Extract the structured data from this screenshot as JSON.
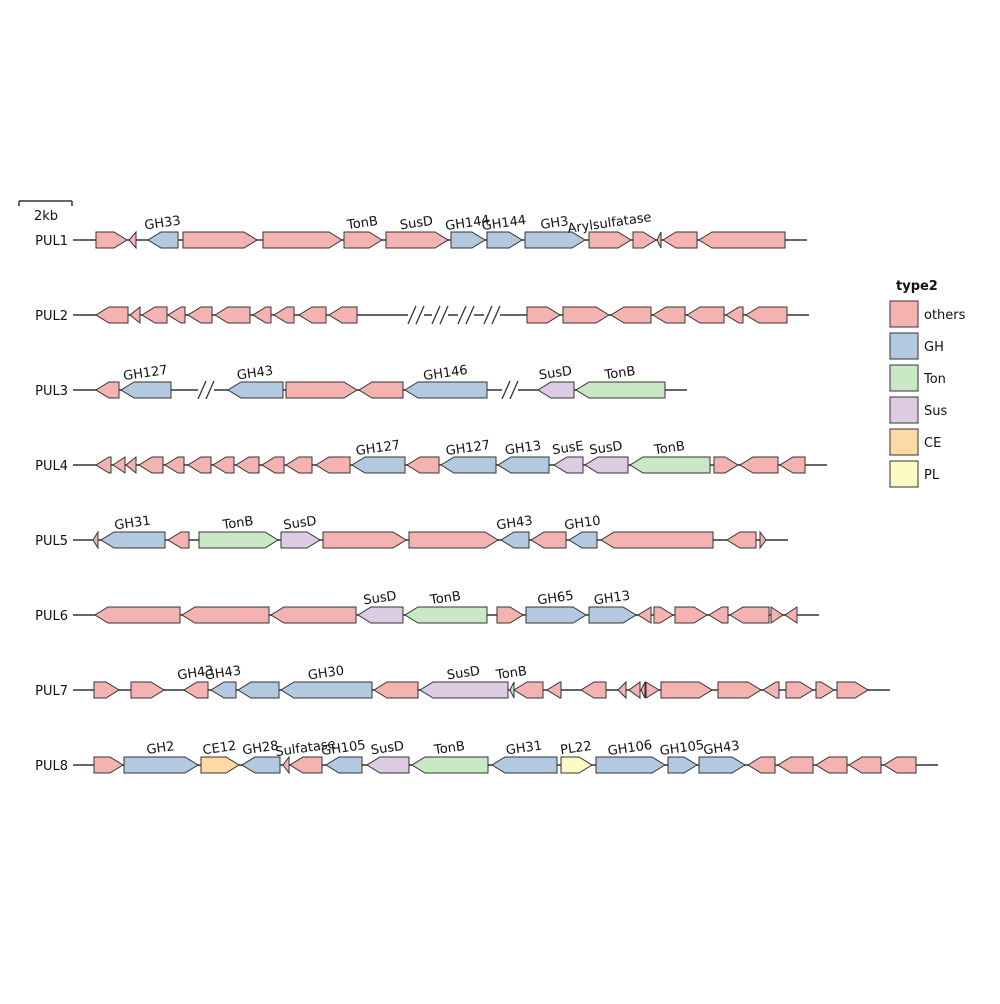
{
  "scale_bar": {
    "label": "2kb"
  },
  "legend": {
    "title": "type2",
    "items": [
      {
        "label": "others",
        "key": "others"
      },
      {
        "label": "GH",
        "key": "GH"
      },
      {
        "label": "Ton",
        "key": "Ton"
      },
      {
        "label": "Sus",
        "key": "Sus"
      },
      {
        "label": "CE",
        "key": "CE"
      },
      {
        "label": "PL",
        "key": "PL"
      }
    ]
  },
  "colors": {
    "others": "#f4b3b0",
    "GH": "#b3c9e0",
    "Ton": "#cbe8c6",
    "Sus": "#dccbe3",
    "CE": "#fdd9a6",
    "PL": "#fdfbc4",
    "stroke": "#333333"
  },
  "loci": [
    {
      "name": "PUL1",
      "breaks": [],
      "genes": [
        {
          "s": 96,
          "e": 127,
          "d": 1,
          "t": "others"
        },
        {
          "s": 129,
          "e": 136,
          "d": -1,
          "t": "others"
        },
        {
          "s": 148,
          "e": 178,
          "d": -1,
          "t": "GH",
          "l": "GH33"
        },
        {
          "s": 183,
          "e": 257,
          "d": 1,
          "t": "others"
        },
        {
          "s": 263,
          "e": 342,
          "d": 1,
          "t": "others"
        },
        {
          "s": 344,
          "e": 382,
          "d": 1,
          "t": "others",
          "l": "TonB"
        },
        {
          "s": 386,
          "e": 448,
          "d": 1,
          "t": "others",
          "l": "SusD"
        },
        {
          "s": 451,
          "e": 485,
          "d": 1,
          "t": "GH",
          "l": "GH144"
        },
        {
          "s": 487,
          "e": 522,
          "d": 1,
          "t": "GH",
          "l": "GH144"
        },
        {
          "s": 525,
          "e": 585,
          "d": 1,
          "t": "GH",
          "l": "GH3"
        },
        {
          "s": 589,
          "e": 631,
          "d": 1,
          "t": "others",
          "l": "Arylsulfatase"
        },
        {
          "s": 633,
          "e": 656,
          "d": 1,
          "t": "others"
        },
        {
          "s": 657,
          "e": 661,
          "d": -1,
          "t": "others"
        },
        {
          "s": 663,
          "e": 697,
          "d": -1,
          "t": "others"
        },
        {
          "s": 699,
          "e": 785,
          "d": -1,
          "t": "others"
        }
      ]
    },
    {
      "name": "PUL2",
      "breaks": [
        416,
        440,
        466,
        492
      ],
      "genes": [
        {
          "s": 96,
          "e": 128,
          "d": -1,
          "t": "others"
        },
        {
          "s": 130,
          "e": 140,
          "d": -1,
          "t": "others"
        },
        {
          "s": 142,
          "e": 167,
          "d": -1,
          "t": "others"
        },
        {
          "s": 168,
          "e": 185,
          "d": -1,
          "t": "others"
        },
        {
          "s": 188,
          "e": 212,
          "d": -1,
          "t": "others"
        },
        {
          "s": 215,
          "e": 250,
          "d": -1,
          "t": "others"
        },
        {
          "s": 253,
          "e": 271,
          "d": -1,
          "t": "others"
        },
        {
          "s": 274,
          "e": 294,
          "d": -1,
          "t": "others"
        },
        {
          "s": 299,
          "e": 326,
          "d": -1,
          "t": "others"
        },
        {
          "s": 329,
          "e": 357,
          "d": -1,
          "t": "others"
        },
        {
          "s": 527,
          "e": 560,
          "d": 1,
          "t": "others"
        },
        {
          "s": 563,
          "e": 609,
          "d": 1,
          "t": "others"
        },
        {
          "s": 611,
          "e": 651,
          "d": -1,
          "t": "others"
        },
        {
          "s": 653,
          "e": 685,
          "d": -1,
          "t": "others"
        },
        {
          "s": 687,
          "e": 724,
          "d": -1,
          "t": "others"
        },
        {
          "s": 726,
          "e": 743,
          "d": -1,
          "t": "others"
        },
        {
          "s": 746,
          "e": 787,
          "d": -1,
          "t": "others"
        }
      ]
    },
    {
      "name": "PUL3",
      "breaks": [
        206,
        510
      ],
      "genes": [
        {
          "s": 96,
          "e": 119,
          "d": -1,
          "t": "others"
        },
        {
          "s": 121,
          "e": 171,
          "d": -1,
          "t": "GH",
          "l": "GH127"
        },
        {
          "s": 228,
          "e": 283,
          "d": -1,
          "t": "GH",
          "l": "GH43"
        },
        {
          "s": 286,
          "e": 357,
          "d": 1,
          "t": "others"
        },
        {
          "s": 359,
          "e": 403,
          "d": -1,
          "t": "others"
        },
        {
          "s": 405,
          "e": 487,
          "d": -1,
          "t": "GH",
          "l": "GH146"
        },
        {
          "s": 538,
          "e": 574,
          "d": -1,
          "t": "Sus",
          "l": "SusD"
        },
        {
          "s": 576,
          "e": 665,
          "d": -1,
          "t": "Ton",
          "l": "TonB"
        }
      ]
    },
    {
      "name": "PUL4",
      "breaks": [],
      "genes": [
        {
          "s": 96,
          "e": 111,
          "d": -1,
          "t": "others"
        },
        {
          "s": 113,
          "e": 125,
          "d": -1,
          "t": "others"
        },
        {
          "s": 126,
          "e": 136,
          "d": -1,
          "t": "others"
        },
        {
          "s": 139,
          "e": 163,
          "d": -1,
          "t": "others"
        },
        {
          "s": 165,
          "e": 184,
          "d": -1,
          "t": "others"
        },
        {
          "s": 188,
          "e": 211,
          "d": -1,
          "t": "others"
        },
        {
          "s": 213,
          "e": 234,
          "d": -1,
          "t": "others"
        },
        {
          "s": 236,
          "e": 259,
          "d": -1,
          "t": "others"
        },
        {
          "s": 262,
          "e": 284,
          "d": -1,
          "t": "others"
        },
        {
          "s": 286,
          "e": 312,
          "d": -1,
          "t": "others"
        },
        {
          "s": 316,
          "e": 350,
          "d": -1,
          "t": "others"
        },
        {
          "s": 352,
          "e": 405,
          "d": -1,
          "t": "GH",
          "l": "GH127"
        },
        {
          "s": 407,
          "e": 439,
          "d": -1,
          "t": "others"
        },
        {
          "s": 441,
          "e": 496,
          "d": -1,
          "t": "GH",
          "l": "GH127"
        },
        {
          "s": 498,
          "e": 549,
          "d": -1,
          "t": "GH",
          "l": "GH13"
        },
        {
          "s": 554,
          "e": 583,
          "d": -1,
          "t": "Sus",
          "l": "SusE"
        },
        {
          "s": 585,
          "e": 628,
          "d": -1,
          "t": "Sus",
          "l": "SusD"
        },
        {
          "s": 630,
          "e": 710,
          "d": -1,
          "t": "Ton",
          "l": "TonB"
        },
        {
          "s": 714,
          "e": 738,
          "d": 1,
          "t": "others"
        },
        {
          "s": 740,
          "e": 778,
          "d": -1,
          "t": "others"
        },
        {
          "s": 780,
          "e": 805,
          "d": -1,
          "t": "others"
        }
      ]
    },
    {
      "name": "PUL5",
      "breaks": [],
      "genes": [
        {
          "s": 93,
          "e": 98,
          "d": -1,
          "t": "others"
        },
        {
          "s": 101,
          "e": 165,
          "d": -1,
          "t": "GH",
          "l": "GH31"
        },
        {
          "s": 168,
          "e": 189,
          "d": -1,
          "t": "others"
        },
        {
          "s": 199,
          "e": 278,
          "d": 1,
          "t": "Ton",
          "l": "TonB"
        },
        {
          "s": 281,
          "e": 320,
          "d": 1,
          "t": "Sus",
          "l": "SusD"
        },
        {
          "s": 323,
          "e": 406,
          "d": 1,
          "t": "others"
        },
        {
          "s": 409,
          "e": 498,
          "d": 1,
          "t": "others"
        },
        {
          "s": 501,
          "e": 529,
          "d": -1,
          "t": "GH",
          "l": "GH43"
        },
        {
          "s": 531,
          "e": 566,
          "d": -1,
          "t": "others"
        },
        {
          "s": 569,
          "e": 597,
          "d": -1,
          "t": "GH",
          "l": "GH10"
        },
        {
          "s": 601,
          "e": 713,
          "d": -1,
          "t": "others"
        },
        {
          "s": 727,
          "e": 756,
          "d": -1,
          "t": "others"
        },
        {
          "s": 760,
          "e": 766,
          "d": 1,
          "t": "others"
        }
      ]
    },
    {
      "name": "PUL6",
      "breaks": [],
      "genes": [
        {
          "s": 95,
          "e": 180,
          "d": -1,
          "t": "others"
        },
        {
          "s": 182,
          "e": 269,
          "d": -1,
          "t": "others"
        },
        {
          "s": 271,
          "e": 356,
          "d": -1,
          "t": "others"
        },
        {
          "s": 358,
          "e": 403,
          "d": -1,
          "t": "Sus",
          "l": "SusD"
        },
        {
          "s": 405,
          "e": 487,
          "d": -1,
          "t": "Ton",
          "l": "TonB"
        },
        {
          "s": 497,
          "e": 523,
          "d": 1,
          "t": "others"
        },
        {
          "s": 526,
          "e": 586,
          "d": 1,
          "t": "GH",
          "l": "GH65"
        },
        {
          "s": 589,
          "e": 636,
          "d": 1,
          "t": "GH",
          "l": "GH13"
        },
        {
          "s": 638,
          "e": 651,
          "d": -1,
          "t": "others"
        },
        {
          "s": 654,
          "e": 673,
          "d": 1,
          "t": "others"
        },
        {
          "s": 675,
          "e": 707,
          "d": 1,
          "t": "others"
        },
        {
          "s": 709,
          "e": 728,
          "d": -1,
          "t": "others"
        },
        {
          "s": 730,
          "e": 769,
          "d": -1,
          "t": "others"
        },
        {
          "s": 771,
          "e": 783,
          "d": 1,
          "t": "others"
        },
        {
          "s": 785,
          "e": 797,
          "d": -1,
          "t": "others"
        }
      ]
    },
    {
      "name": "PUL7",
      "breaks": [],
      "genes": [
        {
          "s": 94,
          "e": 119,
          "d": 1,
          "t": "others"
        },
        {
          "s": 131,
          "e": 164,
          "d": 1,
          "t": "others"
        },
        {
          "s": 184,
          "e": 208,
          "d": -1,
          "t": "others",
          "l": "GH43"
        },
        {
          "s": 211,
          "e": 236,
          "d": -1,
          "t": "GH",
          "l": "GH43"
        },
        {
          "s": 238,
          "e": 279,
          "d": -1,
          "t": "GH"
        },
        {
          "s": 281,
          "e": 372,
          "d": -1,
          "t": "GH",
          "l": "GH30"
        },
        {
          "s": 374,
          "e": 418,
          "d": -1,
          "t": "others"
        },
        {
          "s": 420,
          "e": 508,
          "d": -1,
          "t": "Sus",
          "l": "SusD"
        },
        {
          "s": 510,
          "e": 514,
          "d": -1,
          "t": "Ton",
          "l": "TonB"
        },
        {
          "s": 514,
          "e": 543,
          "d": -1,
          "t": "others"
        },
        {
          "s": 547,
          "e": 561,
          "d": -1,
          "t": "others"
        },
        {
          "s": 581,
          "e": 606,
          "d": -1,
          "t": "others"
        },
        {
          "s": 618,
          "e": 626,
          "d": -1,
          "t": "others"
        },
        {
          "s": 629,
          "e": 640,
          "d": -1,
          "t": "others"
        },
        {
          "s": 641,
          "e": 645,
          "d": -1,
          "t": "others"
        },
        {
          "s": 646,
          "e": 659,
          "d": 1,
          "t": "others"
        },
        {
          "s": 661,
          "e": 712,
          "d": 1,
          "t": "others"
        },
        {
          "s": 718,
          "e": 761,
          "d": 1,
          "t": "others"
        },
        {
          "s": 763,
          "e": 779,
          "d": -1,
          "t": "others"
        },
        {
          "s": 786,
          "e": 813,
          "d": 1,
          "t": "others"
        },
        {
          "s": 816,
          "e": 834,
          "d": 1,
          "t": "others"
        },
        {
          "s": 837,
          "e": 868,
          "d": 1,
          "t": "others"
        }
      ]
    },
    {
      "name": "PUL8",
      "breaks": [],
      "genes": [
        {
          "s": 94,
          "e": 123,
          "d": 1,
          "t": "others"
        },
        {
          "s": 124,
          "e": 198,
          "d": 1,
          "t": "GH",
          "l": "GH2"
        },
        {
          "s": 201,
          "e": 239,
          "d": 1,
          "t": "CE",
          "l": "CE12"
        },
        {
          "s": 242,
          "e": 280,
          "d": -1,
          "t": "GH",
          "l": "GH28"
        },
        {
          "s": 283,
          "e": 289,
          "d": -1,
          "t": "others"
        },
        {
          "s": 290,
          "e": 322,
          "d": -1,
          "t": "others",
          "l": "Sulfatase"
        },
        {
          "s": 326,
          "e": 362,
          "d": -1,
          "t": "GH",
          "l": "GH105"
        },
        {
          "s": 367,
          "e": 409,
          "d": -1,
          "t": "Sus",
          "l": "SusD"
        },
        {
          "s": 412,
          "e": 488,
          "d": -1,
          "t": "Ton",
          "l": "TonB"
        },
        {
          "s": 492,
          "e": 557,
          "d": -1,
          "t": "GH",
          "l": "GH31"
        },
        {
          "s": 561,
          "e": 592,
          "d": 1,
          "t": "PL",
          "l": "PL22"
        },
        {
          "s": 596,
          "e": 665,
          "d": 1,
          "t": "GH",
          "l": "GH106"
        },
        {
          "s": 668,
          "e": 697,
          "d": 1,
          "t": "GH",
          "l": "GH105"
        },
        {
          "s": 699,
          "e": 745,
          "d": 1,
          "t": "GH",
          "l": "GH43"
        },
        {
          "s": 748,
          "e": 775,
          "d": -1,
          "t": "others"
        },
        {
          "s": 778,
          "e": 813,
          "d": -1,
          "t": "others"
        },
        {
          "s": 816,
          "e": 847,
          "d": -1,
          "t": "others"
        },
        {
          "s": 849,
          "e": 881,
          "d": -1,
          "t": "others"
        },
        {
          "s": 884,
          "e": 916,
          "d": -1,
          "t": "others"
        }
      ]
    }
  ]
}
